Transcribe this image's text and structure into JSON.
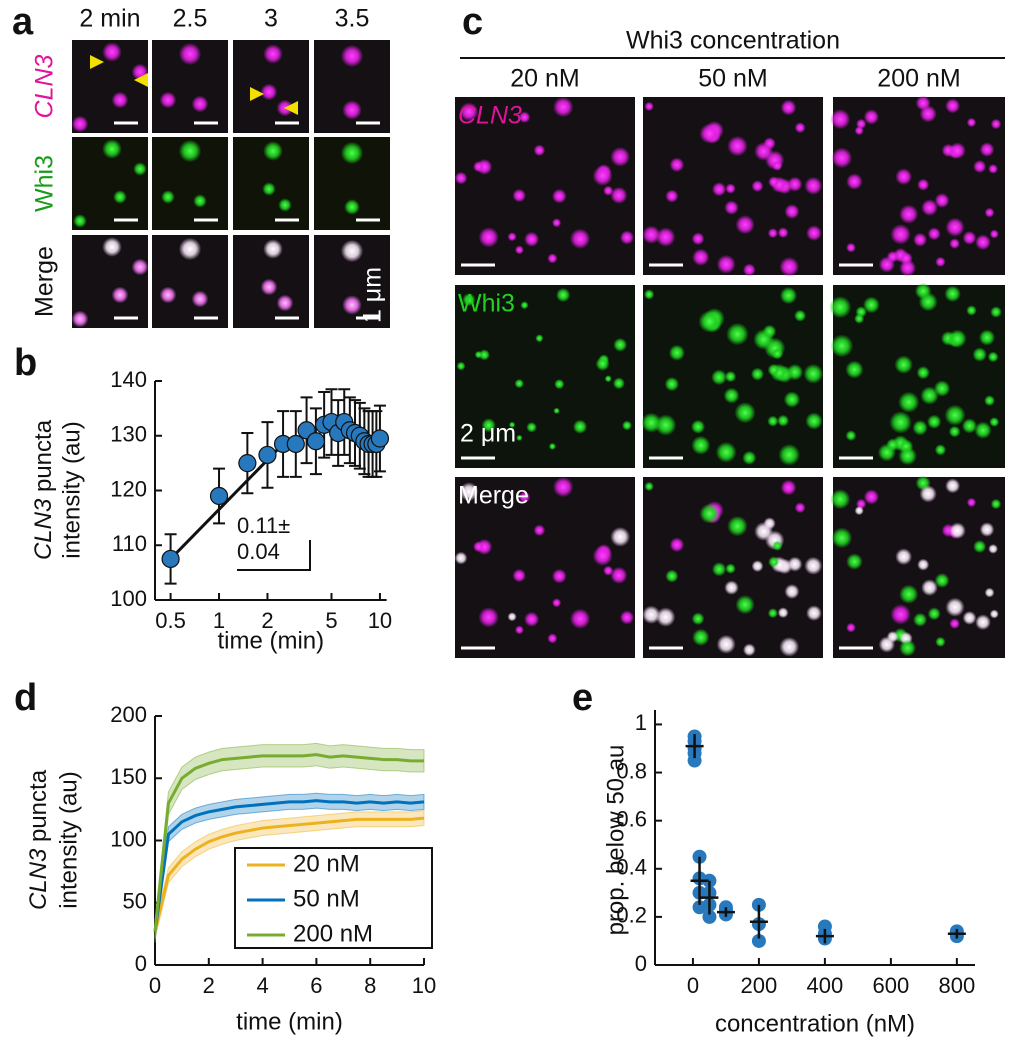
{
  "panel_a": {
    "label": "a",
    "columns": [
      "2 min",
      "2.5",
      "3",
      "3.5"
    ],
    "rows": [
      "CLN3",
      "Whi3",
      "Merge"
    ],
    "scale": "1 μm"
  },
  "panel_c": {
    "label": "c",
    "title": "Whi3 concentration",
    "columns": [
      "20 nM",
      "50 nM",
      "200 nM"
    ],
    "rows": [
      "CLN3",
      "Whi3",
      "Merge"
    ],
    "scale": "2 μm"
  },
  "chart_data": [
    {
      "label": "b",
      "type": "errorbar",
      "xlabel": "time (min)",
      "ylabel": [
        "CLN3",
        "puncta",
        "intensity (au)"
      ],
      "xscale": "log",
      "xlim": [
        0.4,
        11
      ],
      "xticks": [
        0.5,
        1,
        2,
        5,
        10
      ],
      "ylim": [
        100,
        140
      ],
      "yticks": [
        100,
        110,
        120,
        130,
        140
      ],
      "color": "#2878bd",
      "x": [
        0.5,
        1,
        1.5,
        2,
        2.5,
        3,
        3.5,
        4,
        4.5,
        5,
        5.5,
        6,
        6.5,
        7,
        7.5,
        8,
        8.5,
        9,
        9.5,
        10
      ],
      "values": [
        107.5,
        119,
        125,
        126.5,
        128.5,
        128.5,
        131,
        129,
        132,
        132.5,
        130.5,
        132.5,
        131,
        130.5,
        130,
        129,
        128.5,
        128.5,
        128.5,
        129.5
      ],
      "errors": [
        4.5,
        5,
        5.5,
        6,
        6,
        6,
        6,
        6,
        6,
        6,
        6,
        6,
        6,
        6,
        6,
        6,
        6,
        6,
        6,
        6
      ],
      "fit": {
        "x": [
          0.5,
          2.5
        ],
        "values": [
          107.5,
          128.5
        ]
      },
      "annotation": [
        "0.11±",
        "0.04"
      ]
    },
    {
      "label": "d",
      "type": "line",
      "xlabel": "time (min)",
      "ylabel": [
        "CLN3",
        "puncta",
        "intensity (au)"
      ],
      "xlim": [
        0,
        10
      ],
      "xticks": [
        0,
        2,
        4,
        6,
        8,
        10
      ],
      "ylim": [
        0,
        200
      ],
      "yticks": [
        0,
        50,
        100,
        150,
        200
      ],
      "legend": "lower right",
      "x": [
        0,
        0.5,
        1,
        1.5,
        2,
        2.5,
        3,
        3.5,
        4,
        4.5,
        5,
        5.5,
        6,
        6.5,
        7,
        7.5,
        8,
        8.5,
        9,
        9.5,
        10
      ],
      "series": [
        {
          "name": "20 nM",
          "color": "#edb120",
          "error": 6,
          "values": [
            27,
            72,
            85,
            93,
            99,
            103,
            106,
            108,
            110,
            111,
            112,
            113,
            114,
            115,
            116,
            117,
            117,
            117,
            117,
            117,
            118
          ]
        },
        {
          "name": "50 nM",
          "color": "#0072bd",
          "error": 6,
          "values": [
            27,
            105,
            115,
            120,
            123,
            125,
            127,
            128,
            129,
            130,
            131,
            131,
            132,
            131,
            131,
            130,
            131,
            130,
            131,
            130,
            131
          ]
        },
        {
          "name": "200 nM",
          "color": "#77ac30",
          "error": 9,
          "values": [
            27,
            130,
            150,
            158,
            162,
            165,
            166,
            167,
            168,
            168,
            168,
            168,
            169,
            167,
            168,
            167,
            166,
            165,
            165,
            164,
            164
          ]
        }
      ]
    },
    {
      "label": "e",
      "type": "scatter",
      "xlabel": "concentration (nM)",
      "ylabel": "prop. below 50 au",
      "xlim": [
        -115,
        855
      ],
      "xticks": [
        0,
        200,
        400,
        600,
        800
      ],
      "ylim": [
        0,
        1.06
      ],
      "yticks": [
        0,
        {
          "value": 0.2,
          "label": "0.2"
        },
        {
          "value": 0.4,
          "label": "0.4"
        },
        {
          "value": 0.6,
          "label": "0.6"
        },
        {
          "value": 0.8,
          "label": "0.8"
        },
        1
      ],
      "color": "#2878bd",
      "points": {
        "x": [
          5,
          5,
          5,
          5,
          5,
          20,
          20,
          20,
          20,
          50,
          50,
          50,
          50,
          100,
          100,
          100,
          200,
          200,
          200,
          400,
          400,
          400,
          800,
          800,
          800
        ],
        "y": [
          0.85,
          0.88,
          0.9,
          0.93,
          0.95,
          0.24,
          0.3,
          0.36,
          0.45,
          0.2,
          0.25,
          0.3,
          0.35,
          0.21,
          0.23,
          0.24,
          0.1,
          0.17,
          0.25,
          0.11,
          0.13,
          0.16,
          0.12,
          0.13,
          0.14
        ]
      },
      "means": {
        "x": [
          5,
          20,
          50,
          100,
          200,
          400,
          800
        ],
        "values": [
          0.91,
          0.35,
          0.28,
          0.22,
          0.18,
          0.12,
          0.13
        ],
        "errors": [
          0.05,
          0.1,
          0.07,
          0.02,
          0.07,
          0.03,
          0.02
        ]
      }
    }
  ]
}
